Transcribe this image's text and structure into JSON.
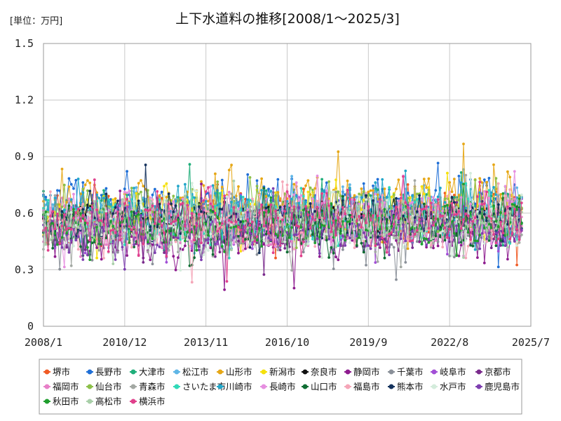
{
  "chart_data": {
    "type": "line",
    "title": "上下水道料の推移[2008/1～2025/3]",
    "unit_label": "[単位：万円]",
    "xlabel": "",
    "ylabel": "",
    "x_start": "2008/1",
    "x_end": "2025/3",
    "x_ticks": [
      "2008/1",
      "2010/12",
      "2013/11",
      "2016/10",
      "2019/9",
      "2022/8",
      "2025/7"
    ],
    "y_ticks": [
      "0",
      "0.3",
      "0.6",
      "0.9",
      "1.2",
      "1.5"
    ],
    "ylim": [
      0,
      1.5
    ],
    "grid": true,
    "legend_position": "bottom",
    "series": [
      {
        "name": "堺市",
        "color": "#f05a24",
        "base": 0.56,
        "amp": 0.12
      },
      {
        "name": "長野市",
        "color": "#1f6fd6",
        "base": 0.62,
        "amp": 0.13
      },
      {
        "name": "大津市",
        "color": "#1fae7a",
        "base": 0.58,
        "amp": 0.12
      },
      {
        "name": "松江市",
        "color": "#5fb6e6",
        "base": 0.57,
        "amp": 0.12
      },
      {
        "name": "山形市",
        "color": "#e6a716",
        "base": 0.64,
        "amp": 0.15
      },
      {
        "name": "新潟市",
        "color": "#f5e10c",
        "base": 0.58,
        "amp": 0.13
      },
      {
        "name": "奈良市",
        "color": "#111111",
        "base": 0.57,
        "amp": 0.06
      },
      {
        "name": "静岡市",
        "color": "#8e1c8f",
        "base": 0.47,
        "amp": 0.11
      },
      {
        "name": "千葉市",
        "color": "#8a9099",
        "base": 0.5,
        "amp": 0.12
      },
      {
        "name": "岐阜市",
        "color": "#a24fd6",
        "base": 0.52,
        "amp": 0.11
      },
      {
        "name": "京都市",
        "color": "#7a2b8c",
        "base": 0.5,
        "amp": 0.1
      },
      {
        "name": "福岡市",
        "color": "#e880c8",
        "base": 0.53,
        "amp": 0.11
      },
      {
        "name": "仙台市",
        "color": "#8cc04a",
        "base": 0.58,
        "amp": 0.12
      },
      {
        "name": "青森市",
        "color": "#a3a8a3",
        "base": 0.52,
        "amp": 0.13
      },
      {
        "name": "さいたま市",
        "color": "#30d9b8",
        "base": 0.55,
        "amp": 0.11
      },
      {
        "name": "川崎市",
        "color": "#22a6c9",
        "base": 0.6,
        "amp": 0.12
      },
      {
        "name": "長崎市",
        "color": "#e68fe0",
        "base": 0.56,
        "amp": 0.12
      },
      {
        "name": "山口市",
        "color": "#0f6e34",
        "base": 0.5,
        "amp": 0.11
      },
      {
        "name": "福島市",
        "color": "#f5a6b8",
        "base": 0.53,
        "amp": 0.12
      },
      {
        "name": "熊本市",
        "color": "#13315c",
        "base": 0.56,
        "amp": 0.09
      },
      {
        "name": "水戸市",
        "color": "#d4ecdc",
        "base": 0.52,
        "amp": 0.12
      },
      {
        "name": "鹿児島市",
        "color": "#7e3fb0",
        "base": 0.48,
        "amp": 0.11
      },
      {
        "name": "秋田市",
        "color": "#1f9e2e",
        "base": 0.52,
        "amp": 0.1
      },
      {
        "name": "高松市",
        "color": "#a9cfa9",
        "base": 0.53,
        "amp": 0.11
      },
      {
        "name": "横浜市",
        "color": "#e0408c",
        "base": 0.56,
        "amp": 0.12
      }
    ]
  }
}
